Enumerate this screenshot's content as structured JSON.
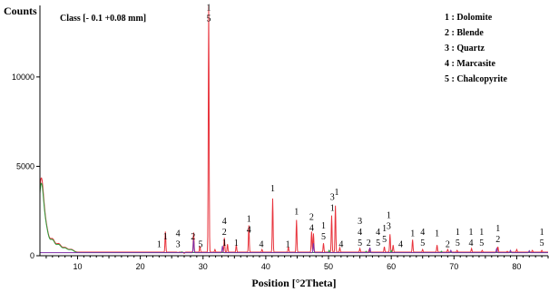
{
  "chart_data": {
    "type": "line",
    "title": "Class [- 0.1   +0.08 mm]",
    "xlabel": "Position [°2Theta]",
    "ylabel": "Counts",
    "xlim": [
      4,
      85
    ],
    "ylim": [
      0,
      14000
    ],
    "x_ticks": [
      10,
      20,
      30,
      40,
      50,
      60,
      70,
      80
    ],
    "y_ticks": [
      5000,
      10000
    ],
    "legend": [
      {
        "num": "1",
        "name": "Dolomite"
      },
      {
        "num": "2",
        "name": "Blende"
      },
      {
        "num": "3",
        "name": "Quartz"
      },
      {
        "num": "4",
        "name": "Marcasite"
      },
      {
        "num": "5",
        "name": "Chalcopyrite"
      }
    ],
    "series": [
      {
        "color": "#e8333c",
        "baseline": 200,
        "peaks": [
          [
            4.2,
            4200
          ],
          [
            5.0,
            1400
          ],
          [
            6.0,
            900
          ],
          [
            7.0,
            650
          ],
          [
            8.0,
            450
          ],
          [
            9.0,
            350
          ],
          [
            24.0,
            1350
          ],
          [
            26.0,
            180
          ],
          [
            27.0,
            130
          ],
          [
            28.5,
            1300
          ],
          [
            29.5,
            550
          ],
          [
            30.9,
            14000
          ],
          [
            31.9,
            350
          ],
          [
            33.4,
            1000
          ],
          [
            33.9,
            650
          ],
          [
            35.3,
            600
          ],
          [
            37.3,
            1700
          ],
          [
            39.4,
            350
          ],
          [
            41.1,
            3200
          ],
          [
            43.6,
            500
          ],
          [
            44.9,
            2000
          ],
          [
            47.3,
            1350
          ],
          [
            47.6,
            1250
          ],
          [
            49.2,
            700
          ],
          [
            50.5,
            2250
          ],
          [
            51.1,
            2800
          ],
          [
            51.8,
            450
          ],
          [
            55.0,
            400
          ],
          [
            56.5,
            350
          ],
          [
            58.9,
            500
          ],
          [
            59.8,
            1200
          ],
          [
            60.3,
            600
          ],
          [
            63.4,
            900
          ],
          [
            65.0,
            350
          ],
          [
            67.3,
            600
          ],
          [
            69.0,
            350
          ],
          [
            70.5,
            300
          ],
          [
            72.8,
            400
          ],
          [
            74.5,
            300
          ],
          [
            77.0,
            500
          ],
          [
            78.5,
            250
          ],
          [
            80.0,
            350
          ],
          [
            82.5,
            300
          ],
          [
            84.0,
            300
          ]
        ]
      },
      {
        "color": "#2e9e3e",
        "baseline": 180,
        "peaks": [
          [
            4.2,
            3900
          ],
          [
            5.0,
            1350
          ],
          [
            6.0,
            850
          ],
          [
            7.0,
            600
          ],
          [
            8.0,
            420
          ],
          [
            9.0,
            330
          ],
          [
            26.6,
            220
          ],
          [
            50.1,
            300
          ],
          [
            56.0,
            250
          ],
          [
            60.0,
            300
          ],
          [
            68.0,
            250
          ]
        ]
      },
      {
        "color": "#7b2fa8",
        "baseline": 170,
        "peaks": [
          [
            28.5,
            900
          ],
          [
            33.1,
            550
          ],
          [
            47.6,
            700
          ],
          [
            56.6,
            450
          ],
          [
            69.5,
            300
          ],
          [
            76.8,
            400
          ],
          [
            79.0,
            300
          ],
          [
            82.0,
            280
          ]
        ]
      }
    ],
    "peak_labels": [
      {
        "x": 23.0,
        "y": 280,
        "lines": [
          "1"
        ]
      },
      {
        "x": 24.0,
        "y": 700,
        "lines": [
          "1"
        ]
      },
      {
        "x": 26.0,
        "y": 280,
        "lines": [
          "4",
          "3"
        ]
      },
      {
        "x": 28.4,
        "y": 700,
        "lines": [
          "2"
        ]
      },
      {
        "x": 29.6,
        "y": 280,
        "lines": [
          "5"
        ]
      },
      {
        "x": 30.9,
        "y": 12900,
        "lines": [
          "1",
          "5"
        ]
      },
      {
        "x": 33.4,
        "y": 350,
        "lines": [
          "4",
          "2",
          "1"
        ]
      },
      {
        "x": 35.3,
        "y": 350,
        "lines": [
          "1"
        ]
      },
      {
        "x": 37.3,
        "y": 1100,
        "lines": [
          "1",
          "4"
        ]
      },
      {
        "x": 39.3,
        "y": 280,
        "lines": [
          "4"
        ]
      },
      {
        "x": 41.1,
        "y": 3400,
        "lines": [
          "1"
        ]
      },
      {
        "x": 43.5,
        "y": 280,
        "lines": [
          "1"
        ]
      },
      {
        "x": 44.9,
        "y": 2100,
        "lines": [
          "1"
        ]
      },
      {
        "x": 47.3,
        "y": 1200,
        "lines": [
          "2",
          "4"
        ]
      },
      {
        "x": 49.2,
        "y": 700,
        "lines": [
          "1",
          "5"
        ]
      },
      {
        "x": 50.6,
        "y": 2300,
        "lines": [
          "3",
          "1"
        ]
      },
      {
        "x": 51.3,
        "y": 3200,
        "lines": [
          "1"
        ]
      },
      {
        "x": 52.0,
        "y": 280,
        "lines": [
          "4"
        ]
      },
      {
        "x": 55.0,
        "y": 350,
        "lines": [
          "3",
          "4",
          "5"
        ]
      },
      {
        "x": 56.4,
        "y": 350,
        "lines": [
          "2"
        ]
      },
      {
        "x": 57.9,
        "y": 350,
        "lines": [
          "4",
          "5"
        ]
      },
      {
        "x": 58.9,
        "y": 550,
        "lines": [
          "1",
          "5"
        ]
      },
      {
        "x": 59.6,
        "y": 1300,
        "lines": [
          "1",
          "3"
        ]
      },
      {
        "x": 61.5,
        "y": 280,
        "lines": [
          "4"
        ]
      },
      {
        "x": 63.4,
        "y": 900,
        "lines": [
          "1"
        ]
      },
      {
        "x": 65.0,
        "y": 350,
        "lines": [
          "4",
          "5"
        ]
      },
      {
        "x": 67.3,
        "y": 900,
        "lines": [
          "1"
        ]
      },
      {
        "x": 69.0,
        "y": 280,
        "lines": [
          "2"
        ]
      },
      {
        "x": 70.6,
        "y": 350,
        "lines": [
          "1",
          "5"
        ]
      },
      {
        "x": 72.7,
        "y": 350,
        "lines": [
          "1",
          "4"
        ]
      },
      {
        "x": 74.4,
        "y": 350,
        "lines": [
          "1",
          "5"
        ]
      },
      {
        "x": 77.0,
        "y": 550,
        "lines": [
          "1",
          "2"
        ]
      },
      {
        "x": 84.0,
        "y": 350,
        "lines": [
          "1",
          "5"
        ]
      }
    ]
  }
}
